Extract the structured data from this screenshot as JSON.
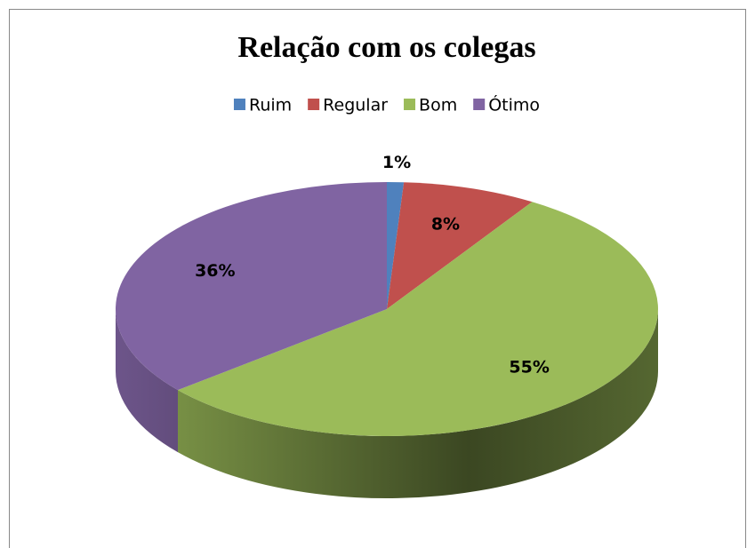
{
  "chart_data": {
    "type": "pie",
    "title": "Relação com os colegas",
    "categories": [
      "Ruim",
      "Regular",
      "Bom",
      "Ótimo"
    ],
    "values": [
      1,
      8,
      55,
      36
    ],
    "value_labels": [
      "1%",
      "8%",
      "55%",
      "36%"
    ],
    "colors": [
      "#4f81bd",
      "#c0504d",
      "#9bbb59",
      "#8064a2"
    ],
    "legend": "top",
    "style": "3d"
  }
}
